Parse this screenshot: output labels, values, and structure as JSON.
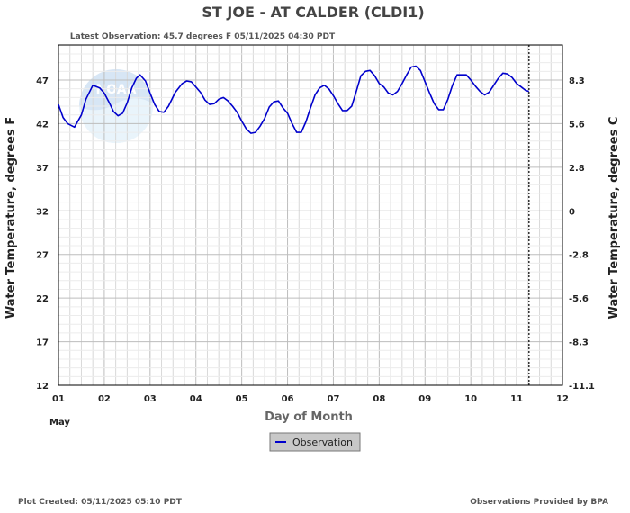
{
  "header": {
    "title": "ST JOE - AT CALDER  (CLDI1)",
    "latest_observation": "Latest Observation: 45.7 degrees F 05/11/2025 04:30 PDT"
  },
  "footer": {
    "plot_created": "Plot Created: 05/11/2025 05:10 PDT",
    "provider": "Observations Provided by BPA"
  },
  "legend": {
    "label": "Observation"
  },
  "colors": {
    "series": "#0000cc",
    "grid": "#d8d8d8",
    "frame": "#000000",
    "legend_bg": "#c8c8c8"
  },
  "chart_data": {
    "type": "line",
    "title": "ST JOE - AT CALDER  (CLDI1)",
    "xlabel": "Day of Month",
    "x_month_label": "May",
    "ylabel_left": "Water Temperature, degrees F",
    "ylabel_right": "Water Temperature, degrees C",
    "xlim": [
      1,
      12
    ],
    "ylim": [
      12,
      52
    ],
    "x_ticks": [
      1,
      2,
      3,
      4,
      5,
      6,
      7,
      8,
      9,
      10,
      11,
      12
    ],
    "x_tick_labels": [
      "01",
      "02",
      "03",
      "04",
      "05",
      "06",
      "07",
      "08",
      "09",
      "10",
      "11",
      "12"
    ],
    "y_ticks": [
      12,
      17,
      22,
      27,
      32,
      37,
      42,
      47
    ],
    "y_tick_labels": [
      "12",
      "17",
      "22",
      "27",
      "32",
      "37",
      "42",
      "47"
    ],
    "y_right_ticks_f": [
      12,
      17,
      22,
      27,
      32,
      37,
      42,
      47
    ],
    "y_right_tick_labels": [
      "-11.1",
      "-8.3",
      "-5.6",
      "-2.8",
      "0",
      "2.8",
      "5.6",
      "8.3"
    ],
    "grid": true,
    "current_time_marker": 11.27,
    "series": [
      {
        "name": "Observation",
        "x": [
          1.0,
          1.1,
          1.2,
          1.35,
          1.5,
          1.6,
          1.75,
          1.9,
          2.0,
          2.1,
          2.2,
          2.3,
          2.4,
          2.5,
          2.6,
          2.7,
          2.78,
          2.9,
          3.0,
          3.1,
          3.2,
          3.3,
          3.4,
          3.55,
          3.7,
          3.8,
          3.9,
          4.0,
          4.1,
          4.2,
          4.3,
          4.4,
          4.5,
          4.6,
          4.7,
          4.8,
          4.9,
          5.0,
          5.1,
          5.2,
          5.3,
          5.4,
          5.5,
          5.6,
          5.7,
          5.8,
          5.9,
          6.0,
          6.1,
          6.2,
          6.3,
          6.4,
          6.5,
          6.6,
          6.7,
          6.8,
          6.9,
          7.0,
          7.1,
          7.2,
          7.3,
          7.4,
          7.5,
          7.6,
          7.7,
          7.8,
          7.9,
          8.0,
          8.1,
          8.2,
          8.3,
          8.4,
          8.5,
          8.6,
          8.7,
          8.8,
          8.9,
          9.0,
          9.1,
          9.2,
          9.3,
          9.4,
          9.5,
          9.6,
          9.7,
          9.8,
          9.9,
          10.0,
          10.1,
          10.2,
          10.3,
          10.4,
          10.5,
          10.6,
          10.7,
          10.8,
          10.9,
          11.0,
          11.1,
          11.2,
          11.27
        ],
        "y": [
          44.2,
          42.7,
          42.0,
          41.6,
          43.0,
          44.8,
          46.4,
          46.1,
          45.5,
          44.5,
          43.4,
          42.9,
          43.2,
          44.4,
          46.1,
          47.2,
          47.6,
          46.9,
          45.5,
          44.2,
          43.4,
          43.3,
          44.0,
          45.6,
          46.6,
          46.9,
          46.8,
          46.2,
          45.6,
          44.7,
          44.2,
          44.3,
          44.8,
          45.0,
          44.6,
          44.0,
          43.3,
          42.3,
          41.4,
          40.9,
          41.0,
          41.7,
          42.6,
          43.9,
          44.5,
          44.6,
          43.8,
          43.2,
          42.0,
          41.0,
          41.0,
          42.2,
          43.8,
          45.3,
          46.1,
          46.4,
          46.0,
          45.2,
          44.3,
          43.5,
          43.5,
          44.0,
          45.7,
          47.5,
          48.0,
          48.1,
          47.5,
          46.6,
          46.2,
          45.5,
          45.3,
          45.7,
          46.6,
          47.6,
          48.5,
          48.6,
          48.1,
          46.8,
          45.5,
          44.3,
          43.6,
          43.6,
          44.8,
          46.4,
          47.6,
          47.6,
          47.6,
          47.0,
          46.3,
          45.7,
          45.3,
          45.6,
          46.4,
          47.2,
          47.8,
          47.7,
          47.3,
          46.6,
          46.2,
          45.8,
          45.7
        ]
      }
    ]
  }
}
